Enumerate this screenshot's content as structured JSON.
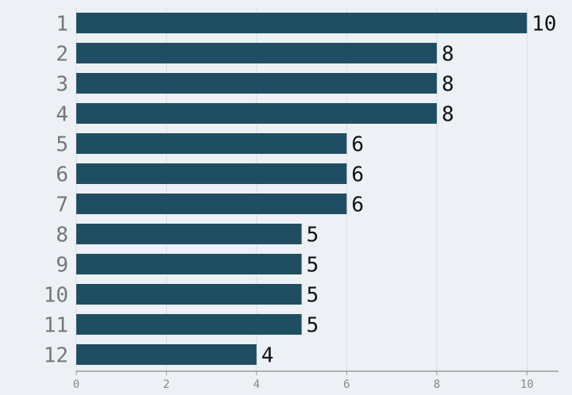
{
  "chart_data": {
    "type": "bar",
    "orientation": "horizontal",
    "categories": [
      "1",
      "2",
      "3",
      "4",
      "5",
      "6",
      "7",
      "8",
      "9",
      "10",
      "11",
      "12"
    ],
    "values": [
      10,
      8,
      8,
      8,
      6,
      6,
      6,
      5,
      5,
      5,
      5,
      4
    ],
    "color": "#1f4e63",
    "xlim": [
      0,
      10.7
    ],
    "xticks": [
      0,
      2,
      4,
      6,
      8,
      10
    ],
    "grid": true
  }
}
